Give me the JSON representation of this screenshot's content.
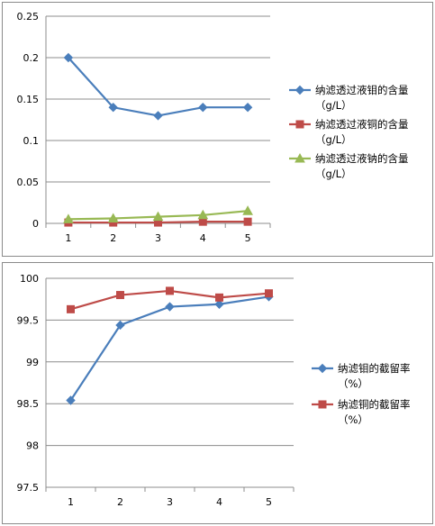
{
  "chart_data": [
    {
      "type": "line",
      "categories": [
        "1",
        "2",
        "3",
        "4",
        "5"
      ],
      "ylim": [
        0,
        0.25
      ],
      "yticks": [
        "0",
        "0.05",
        "0.1",
        "0.15",
        "0.2",
        "0.25"
      ],
      "series": [
        {
          "name": "纳滤透过液钼的含量（g/L）",
          "legend_lines": [
            "纳滤透过液钼的含量",
            "（g/L）"
          ],
          "color": "#4a7ebb",
          "marker": "diamond",
          "values": [
            0.2,
            0.14,
            0.13,
            0.14,
            0.14
          ]
        },
        {
          "name": "纳滤透过液铜的含量（g/L）",
          "legend_lines": [
            "纳滤透过液铜的含量",
            "（g/L）"
          ],
          "color": "#be4b48",
          "marker": "square",
          "values": [
            0.001,
            0.001,
            0.001,
            0.002,
            0.002
          ]
        },
        {
          "name": "纳滤透过液钠的含量（g/L）",
          "legend_lines": [
            "纳滤透过液钠的含量",
            "（g/L）"
          ],
          "color": "#98b954",
          "marker": "triangle",
          "values": [
            0.005,
            0.006,
            0.008,
            0.01,
            0.015
          ]
        }
      ],
      "grid": "horizontal",
      "legend_position": "right"
    },
    {
      "type": "line",
      "categories": [
        "1",
        "2",
        "3",
        "4",
        "5"
      ],
      "ylim": [
        97.5,
        100
      ],
      "yticks": [
        "97.5",
        "98",
        "98.5",
        "99",
        "99.5",
        "100"
      ],
      "series": [
        {
          "name": "纳滤钼的截留率（%）",
          "legend_lines": [
            "纳滤钼的截留率",
            "（%）"
          ],
          "color": "#4a7ebb",
          "marker": "diamond",
          "values": [
            98.54,
            99.44,
            99.66,
            99.69,
            99.78
          ]
        },
        {
          "name": "纳滤铜的截留率（%）",
          "legend_lines": [
            "纳滤铜的截留率",
            "（%）"
          ],
          "color": "#be4b48",
          "marker": "square",
          "values": [
            99.63,
            99.8,
            99.85,
            99.77,
            99.82
          ]
        }
      ],
      "grid": "horizontal",
      "legend_position": "right"
    }
  ]
}
